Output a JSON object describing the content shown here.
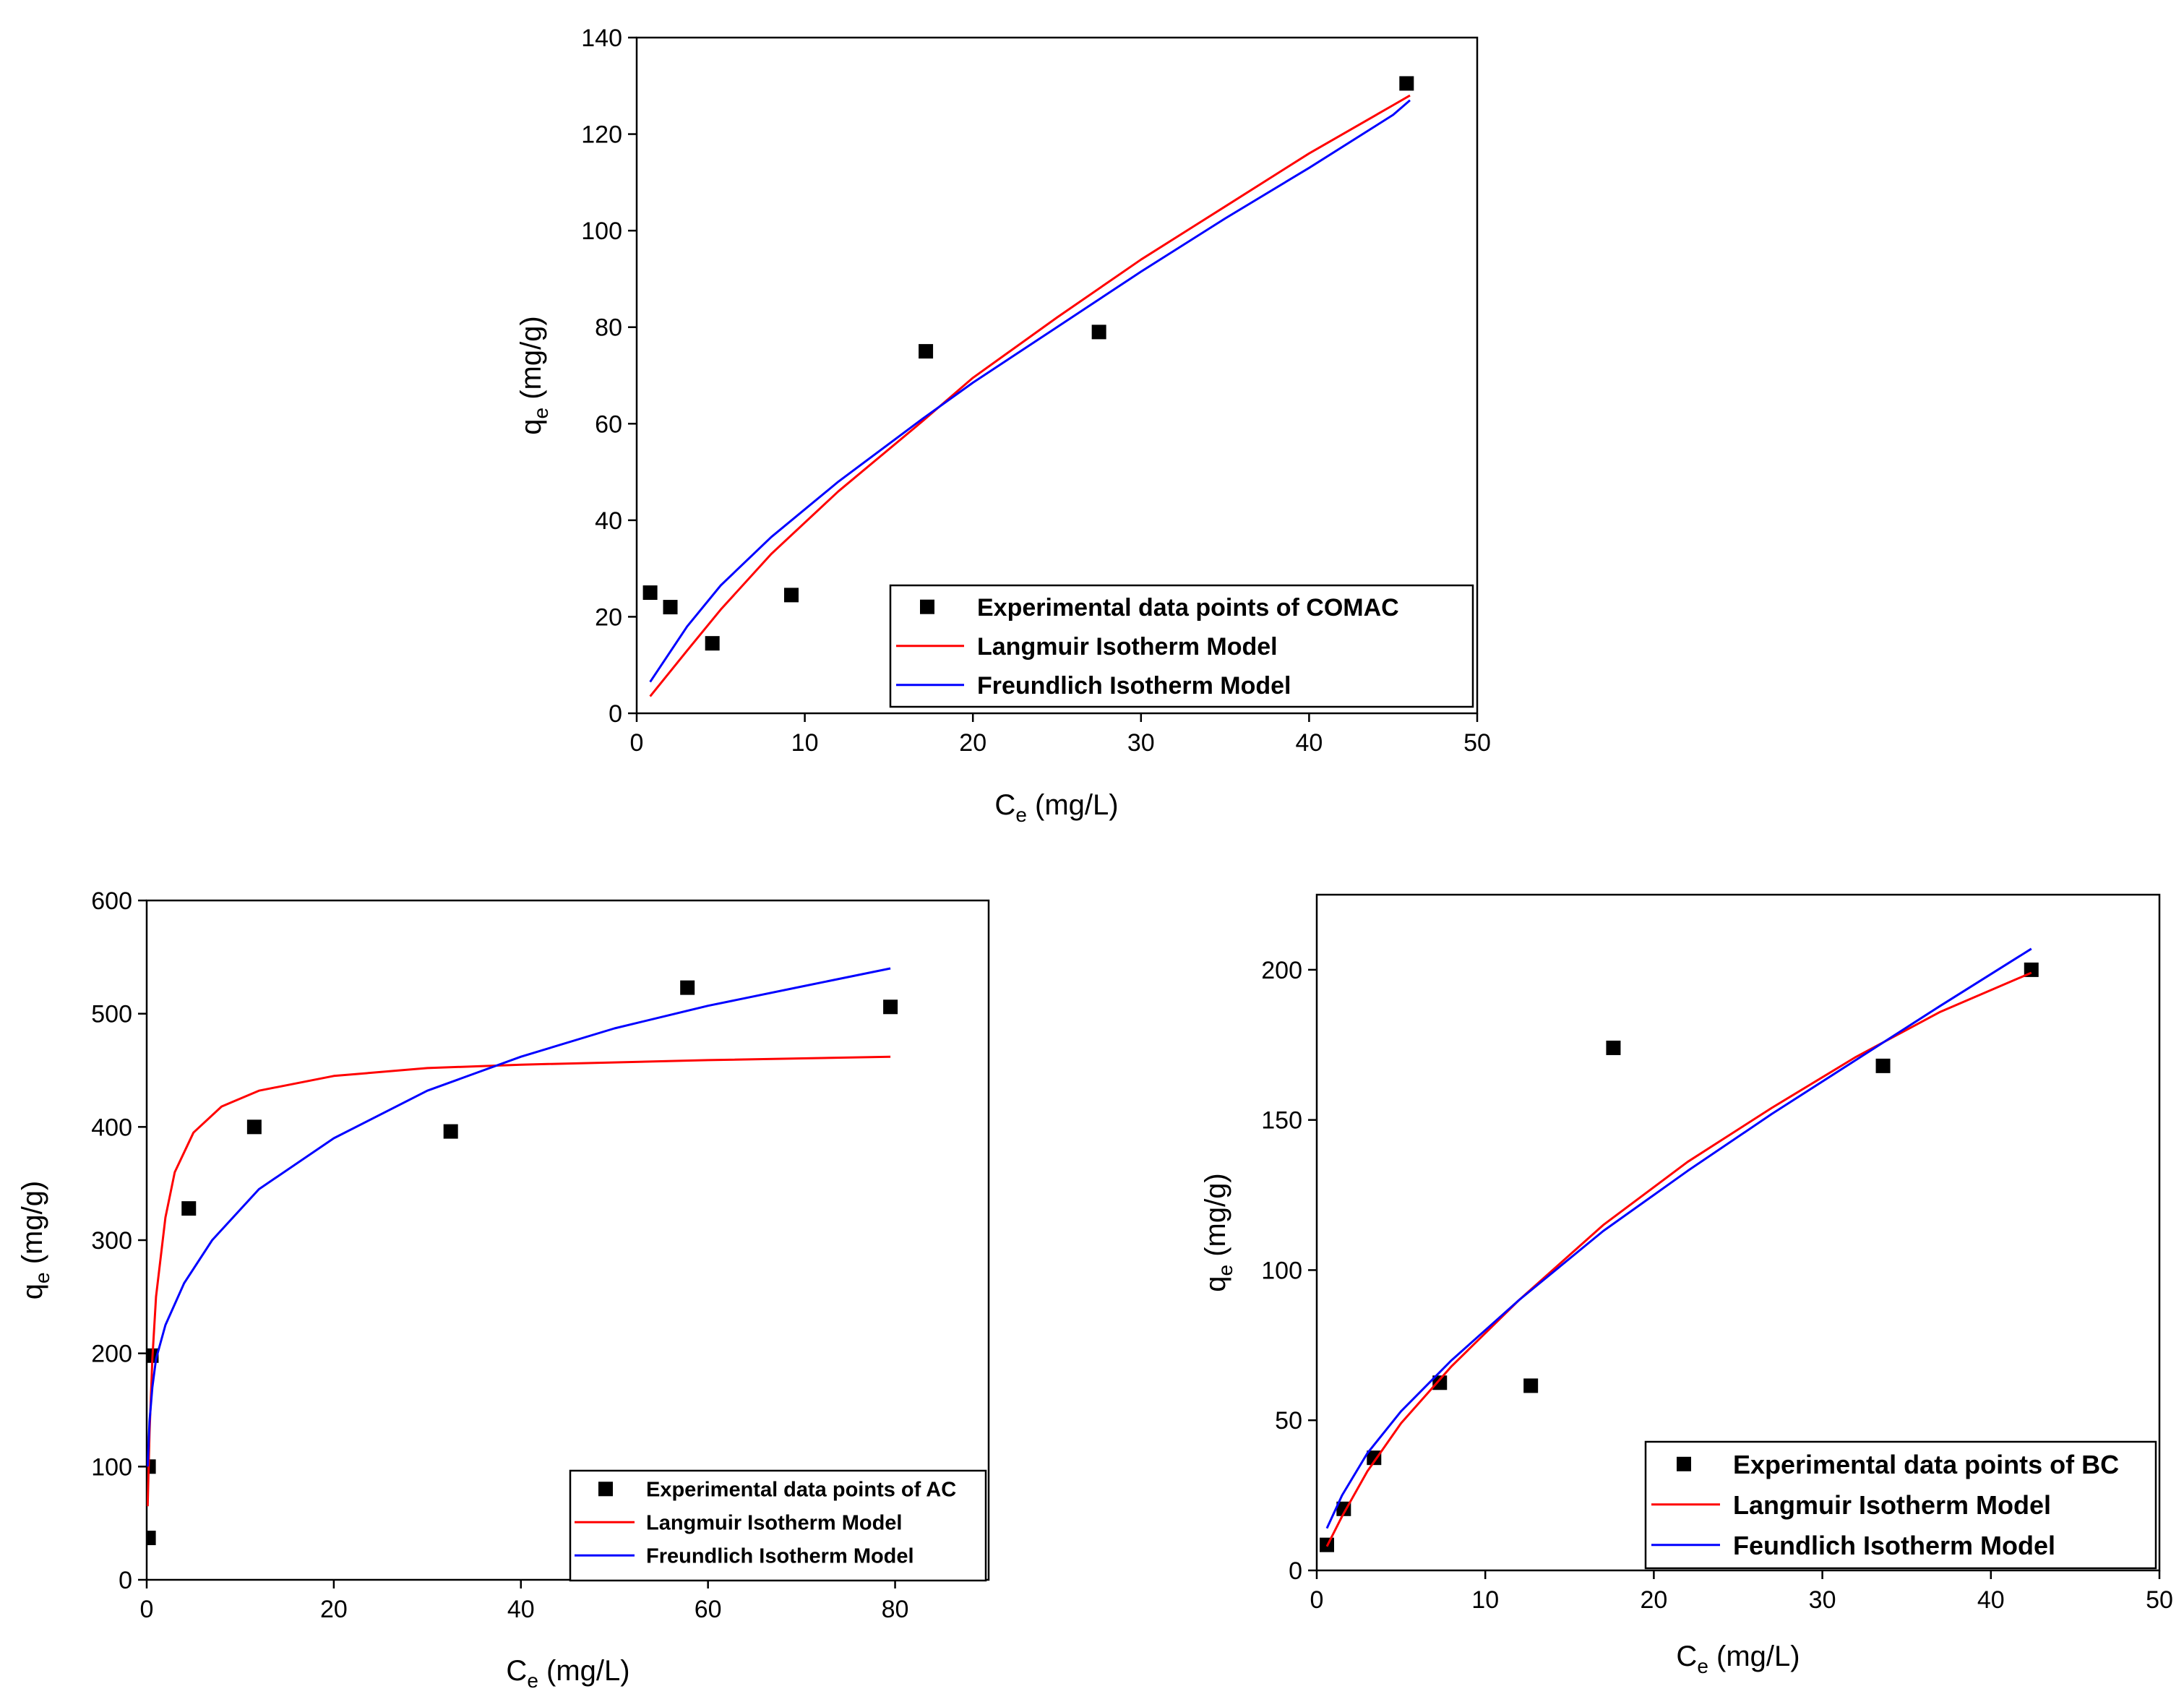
{
  "colors": {
    "experimental": "#000000",
    "langmuir": "#ff0000",
    "freundlich": "#0000ff",
    "axis": "#000000"
  },
  "chart_data": [
    {
      "id": "comac",
      "type": "scatter",
      "xlabel": {
        "main": "C",
        "sub": "e",
        "unit": " (mg/L)"
      },
      "ylabel": {
        "main": "q",
        "sub": "e",
        "unit": " (mg/g)"
      },
      "xlim": [
        0,
        50
      ],
      "ylim": [
        0,
        140
      ],
      "x_ticks": [
        "0",
        "10",
        "20",
        "30",
        "40",
        "50"
      ],
      "y_ticks": [
        "0",
        "20",
        "40",
        "60",
        "80",
        "100",
        "120",
        "140"
      ],
      "legend_position": "bottom-right",
      "series": [
        {
          "name": "Experimental data points of  COMAC",
          "kind": "points",
          "color_key": "experimental",
          "points": [
            [
              0.8,
              25
            ],
            [
              2,
              22
            ],
            [
              4.5,
              14.5
            ],
            [
              9.2,
              24.5
            ],
            [
              17.2,
              75
            ],
            [
              27.5,
              79
            ],
            [
              45.8,
              130.5
            ]
          ]
        },
        {
          "name": "Langmuir Isotherm Model",
          "kind": "line",
          "color_key": "langmuir",
          "points": [
            [
              0.8,
              3.5
            ],
            [
              3,
              13
            ],
            [
              5,
              21.5
            ],
            [
              8,
              33
            ],
            [
              12,
              46
            ],
            [
              17,
              60.5
            ],
            [
              20,
              69.5
            ],
            [
              25,
              82
            ],
            [
              30,
              94
            ],
            [
              35,
              105
            ],
            [
              40,
              116
            ],
            [
              45,
              126
            ],
            [
              46,
              128
            ]
          ]
        },
        {
          "name": "Freundlich Isotherm Model",
          "kind": "line",
          "color_key": "freundlich",
          "points": [
            [
              0.8,
              6.5
            ],
            [
              3,
              18
            ],
            [
              5,
              26.5
            ],
            [
              8,
              36.5
            ],
            [
              12,
              48
            ],
            [
              17,
              61
            ],
            [
              20,
              68.5
            ],
            [
              25,
              80
            ],
            [
              30,
              91.5
            ],
            [
              35,
              102.5
            ],
            [
              40,
              113
            ],
            [
              45,
              124
            ],
            [
              46,
              127
            ]
          ]
        }
      ]
    },
    {
      "id": "ac",
      "type": "scatter",
      "xlabel": {
        "main": "C",
        "sub": "e",
        "unit": " (mg/L)"
      },
      "ylabel": {
        "main": "q",
        "sub": "e",
        "unit": " (mg/g)"
      },
      "xlim": [
        0,
        90
      ],
      "ylim": [
        0,
        600
      ],
      "x_ticks": [
        "0",
        "20",
        "40",
        "60",
        "80"
      ],
      "y_ticks": [
        "0",
        "100",
        "200",
        "300",
        "400",
        "500",
        "600"
      ],
      "legend_position": "bottom-right",
      "series": [
        {
          "name": "Experimental data points of AC",
          "kind": "points",
          "color_key": "experimental",
          "points": [
            [
              0.2,
              37
            ],
            [
              0.2,
              100
            ],
            [
              0.5,
              198
            ],
            [
              4.5,
              328
            ],
            [
              11.5,
              400
            ],
            [
              32.5,
              396
            ],
            [
              57.8,
              523
            ],
            [
              79.5,
              506
            ]
          ]
        },
        {
          "name": "Langmuir Isotherm Model",
          "kind": "line",
          "color_key": "langmuir",
          "points": [
            [
              0.1,
              65
            ],
            [
              0.3,
              130
            ],
            [
              0.6,
              195
            ],
            [
              1,
              250
            ],
            [
              2,
              320
            ],
            [
              3,
              360
            ],
            [
              5,
              395
            ],
            [
              8,
              418
            ],
            [
              12,
              432
            ],
            [
              20,
              445
            ],
            [
              30,
              452
            ],
            [
              40,
              455
            ],
            [
              60,
              459
            ],
            [
              79.5,
              462
            ]
          ]
        },
        {
          "name": "Freundlich Isotherm Model",
          "kind": "line",
          "color_key": "freundlich",
          "points": [
            [
              0.1,
              100
            ],
            [
              0.3,
              140
            ],
            [
              0.6,
              170
            ],
            [
              1,
              195
            ],
            [
              2,
              225
            ],
            [
              4,
              262
            ],
            [
              7,
              300
            ],
            [
              12,
              345
            ],
            [
              20,
              390
            ],
            [
              30,
              432
            ],
            [
              40,
              462
            ],
            [
              50,
              487
            ],
            [
              60,
              507
            ],
            [
              70,
              524
            ],
            [
              79.5,
              540
            ]
          ]
        }
      ]
    },
    {
      "id": "bc",
      "type": "scatter",
      "xlabel": {
        "main": "C",
        "sub": "e",
        "unit": " (mg/L)"
      },
      "ylabel": {
        "main": "q",
        "sub": "e",
        "unit": " (mg/g)"
      },
      "xlim": [
        0,
        50
      ],
      "ylim": [
        0,
        225
      ],
      "x_ticks": [
        "0",
        "10",
        "20",
        "30",
        "40",
        "50"
      ],
      "y_ticks": [
        "0",
        "50",
        "100",
        "150",
        "200"
      ],
      "y_tick_values": [
        0,
        50,
        100,
        150,
        200
      ],
      "legend_position": "bottom-right",
      "series": [
        {
          "name": "Experimental data points of BC",
          "kind": "points",
          "color_key": "experimental",
          "points": [
            [
              0.6,
              8.5
            ],
            [
              1.6,
              20.5
            ],
            [
              3.4,
              37.5
            ],
            [
              7.3,
              62.5
            ],
            [
              12.7,
              61.5
            ],
            [
              17.6,
              174
            ],
            [
              33.6,
              168
            ],
            [
              42.4,
              200
            ]
          ]
        },
        {
          "name": "Langmuir Isotherm Model",
          "kind": "line",
          "color_key": "langmuir",
          "points": [
            [
              0.6,
              8
            ],
            [
              1.5,
              18
            ],
            [
              3,
              33
            ],
            [
              5,
              49
            ],
            [
              8,
              68
            ],
            [
              12,
              90
            ],
            [
              17,
              115
            ],
            [
              22,
              136
            ],
            [
              27,
              154
            ],
            [
              32,
              171
            ],
            [
              37,
              186
            ],
            [
              42.4,
              199
            ]
          ]
        },
        {
          "name": "Feundlich Isotherm Model",
          "kind": "line",
          "color_key": "freundlich",
          "points": [
            [
              0.6,
              14
            ],
            [
              1.5,
              25
            ],
            [
              3,
              39
            ],
            [
              5,
              53
            ],
            [
              8,
              70
            ],
            [
              12,
              90
            ],
            [
              17,
              113
            ],
            [
              22,
              133
            ],
            [
              27,
              152
            ],
            [
              32,
              170
            ],
            [
              37,
              188
            ],
            [
              42.4,
              207
            ]
          ]
        }
      ]
    }
  ]
}
